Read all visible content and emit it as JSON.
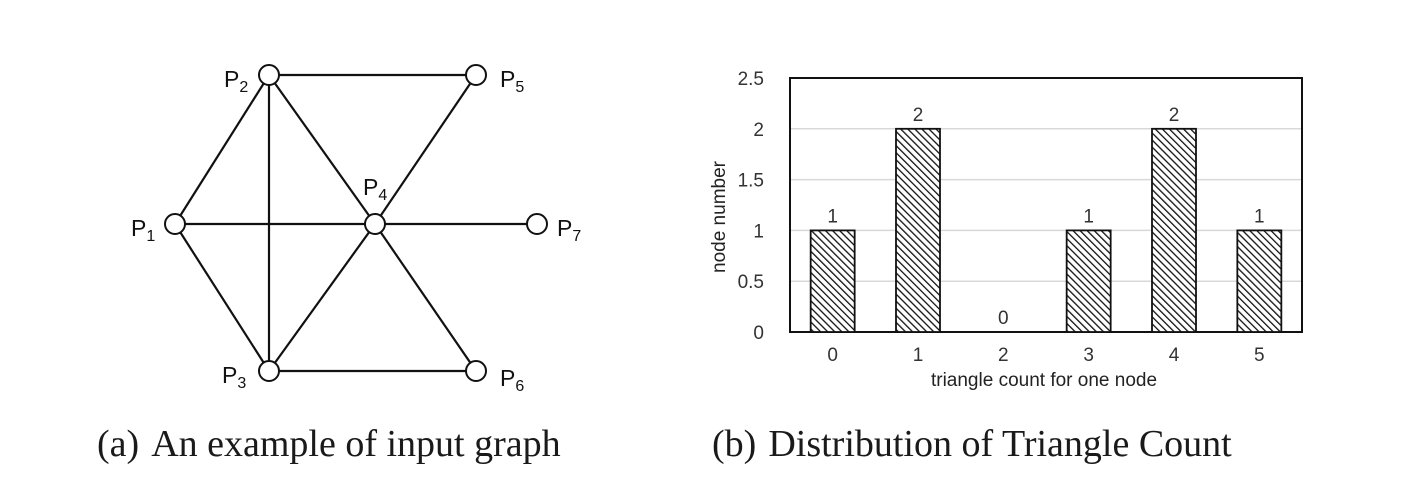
{
  "graph": {
    "nodes": [
      {
        "id": "P1",
        "base": "P",
        "sub": "1"
      },
      {
        "id": "P2",
        "base": "P",
        "sub": "2"
      },
      {
        "id": "P3",
        "base": "P",
        "sub": "3"
      },
      {
        "id": "P4",
        "base": "P",
        "sub": "4"
      },
      {
        "id": "P5",
        "base": "P",
        "sub": "5"
      },
      {
        "id": "P6",
        "base": "P",
        "sub": "6"
      },
      {
        "id": "P7",
        "base": "P",
        "sub": "7"
      }
    ],
    "edges": [
      [
        "P1",
        "P2"
      ],
      [
        "P1",
        "P3"
      ],
      [
        "P1",
        "P4"
      ],
      [
        "P2",
        "P3"
      ],
      [
        "P2",
        "P4"
      ],
      [
        "P2",
        "P5"
      ],
      [
        "P3",
        "P4"
      ],
      [
        "P3",
        "P6"
      ],
      [
        "P4",
        "P5"
      ],
      [
        "P4",
        "P6"
      ],
      [
        "P4",
        "P7"
      ]
    ]
  },
  "chart_data": {
    "type": "bar",
    "categories": [
      "0",
      "1",
      "2",
      "3",
      "4",
      "5"
    ],
    "values": [
      1,
      2,
      0,
      1,
      2,
      1
    ],
    "data_labels": [
      "1",
      "2",
      "0",
      "1",
      "2",
      "1"
    ],
    "xlabel": "triangle count for one node",
    "ylabel": "node number",
    "ylim": [
      0,
      2.5
    ],
    "yticks": [
      "0",
      "0.5",
      "1",
      "1.5",
      "2",
      "2.5"
    ],
    "grid": true,
    "bar_fill": "diagonal-hatch"
  },
  "captions": {
    "a_tag": "(a)",
    "a_text": "An example of input graph",
    "b_tag": "(b)",
    "b_text": "Distribution of Triangle Count"
  }
}
